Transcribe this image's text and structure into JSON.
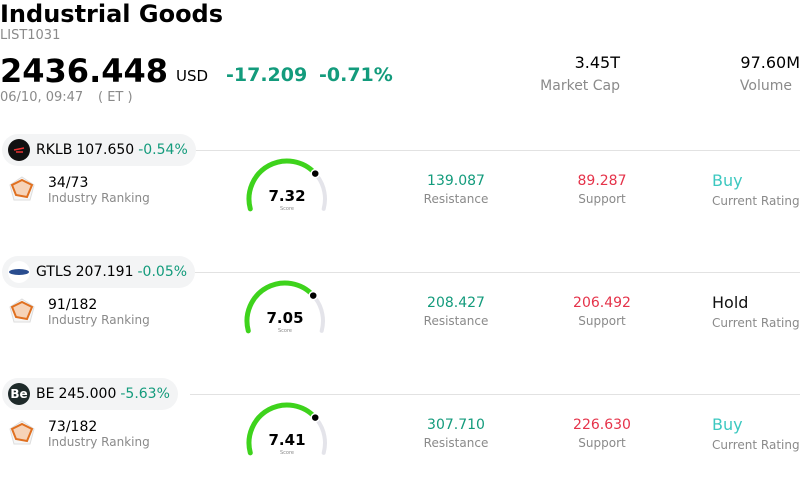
{
  "header": {
    "title": "Industrial Goods",
    "code": "LIST1031",
    "price": "2436.448",
    "currency": "USD",
    "change": "-17.209",
    "change_pct": "-0.71%",
    "datetime": "06/10, 09:47",
    "timezone": "( ET )",
    "market_cap": "3.45T",
    "market_cap_label": "Market Cap",
    "volume": "97.60M",
    "volume_label": "Volume"
  },
  "stocks": [
    {
      "ticker": "RKLB",
      "price": "107.650",
      "change_pct": "-0.54%",
      "ranking": "34/73",
      "ranking_label": "Industry Ranking",
      "score": "7.32",
      "score_label": "Score",
      "resistance": "139.087",
      "resistance_label": "Resistance",
      "support": "89.287",
      "support_label": "Support",
      "rating": "Buy",
      "rating_label": "Current Rating"
    },
    {
      "ticker": "GTLS",
      "price": "207.191",
      "change_pct": "-0.05%",
      "ranking": "91/182",
      "ranking_label": "Industry Ranking",
      "score": "7.05",
      "score_label": "Score",
      "resistance": "208.427",
      "resistance_label": "Resistance",
      "support": "206.492",
      "support_label": "Support",
      "rating": "Hold",
      "rating_label": "Current Rating"
    },
    {
      "ticker": "BE",
      "logo_text": "Be",
      "price": "245.000",
      "change_pct": "-5.63%",
      "ranking": "73/182",
      "ranking_label": "Industry Ranking",
      "score": "7.41",
      "score_label": "Score",
      "resistance": "307.710",
      "resistance_label": "Resistance",
      "support": "226.630",
      "support_label": "Support",
      "rating": "Buy",
      "rating_label": "Current Rating"
    }
  ]
}
